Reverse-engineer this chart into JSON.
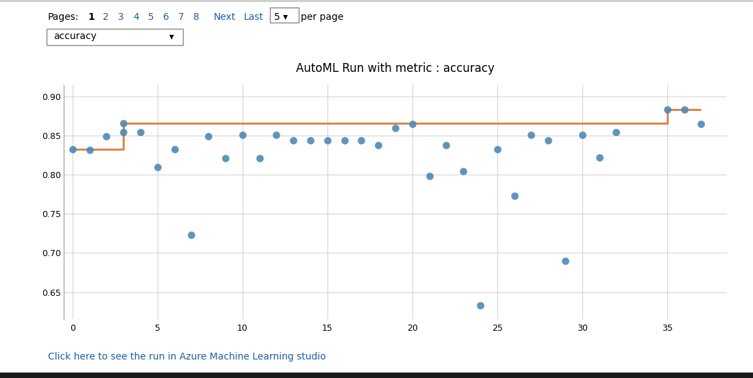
{
  "title": "AutoML Run with metric : accuracy",
  "scatter_x": [
    0,
    1,
    2,
    3,
    3,
    4,
    5,
    6,
    7,
    8,
    9,
    10,
    11,
    12,
    13,
    14,
    15,
    16,
    17,
    18,
    19,
    20,
    21,
    22,
    23,
    24,
    25,
    26,
    27,
    28,
    29,
    30,
    31,
    32,
    35,
    36,
    37
  ],
  "scatter_y": [
    0.833,
    0.832,
    0.849,
    0.866,
    0.855,
    0.855,
    0.81,
    0.833,
    0.723,
    0.849,
    0.821,
    0.851,
    0.821,
    0.851,
    0.844,
    0.844,
    0.844,
    0.844,
    0.844,
    0.838,
    0.86,
    0.865,
    0.799,
    0.838,
    0.805,
    0.633,
    0.833,
    0.773,
    0.851,
    0.844,
    0.69,
    0.851,
    0.822,
    0.855,
    0.884,
    0.884,
    0.865
  ],
  "step_x": [
    0,
    3,
    3,
    35,
    35,
    37
  ],
  "step_y": [
    0.833,
    0.833,
    0.866,
    0.866,
    0.884,
    0.884
  ],
  "scatter_color": "#4d8ab5",
  "line_color": "#e07b39",
  "xlim": [
    -0.5,
    38.5
  ],
  "ylim": [
    0.615,
    0.915
  ],
  "yticks": [
    0.65,
    0.7,
    0.75,
    0.8,
    0.85,
    0.9
  ],
  "xticks": [
    0,
    5,
    10,
    15,
    20,
    25,
    30,
    35
  ],
  "bg_color": "#ffffff",
  "grid_color": "#d0d0d0",
  "link_text": "Click here to see the run in Azure Machine Learning studio",
  "link_color": "#1a5fa8",
  "scatter_size": 60,
  "page_numbers": [
    "1",
    "2",
    "3",
    "4",
    "5",
    "6",
    "7",
    "8"
  ]
}
